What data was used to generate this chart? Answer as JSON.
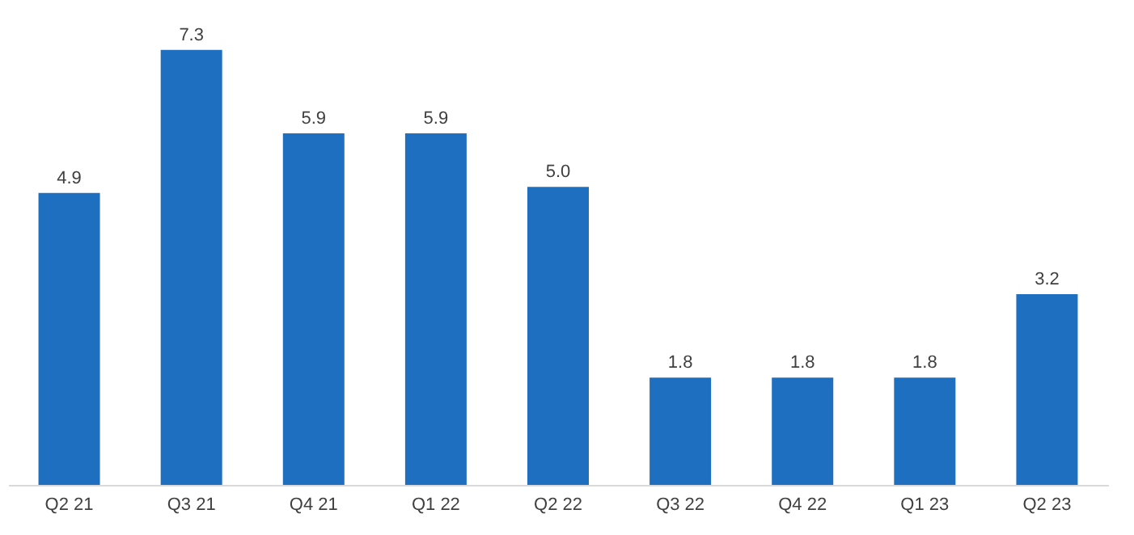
{
  "chart_data": {
    "type": "bar",
    "categories": [
      "Q2 21",
      "Q3 21",
      "Q4 21",
      "Q1 22",
      "Q2 22",
      "Q3 22",
      "Q4 22",
      "Q1 23",
      "Q2 23"
    ],
    "values": [
      4.9,
      7.3,
      5.9,
      5.9,
      5.0,
      1.8,
      1.8,
      1.8,
      3.2
    ],
    "color": "#1f6fc0",
    "value_labels": [
      "4.9",
      "7.3",
      "5.9",
      "5.9",
      "5.0",
      "1.8",
      "1.8",
      "1.8",
      "3.2"
    ],
    "grid": false,
    "tick_labels": "x"
  }
}
